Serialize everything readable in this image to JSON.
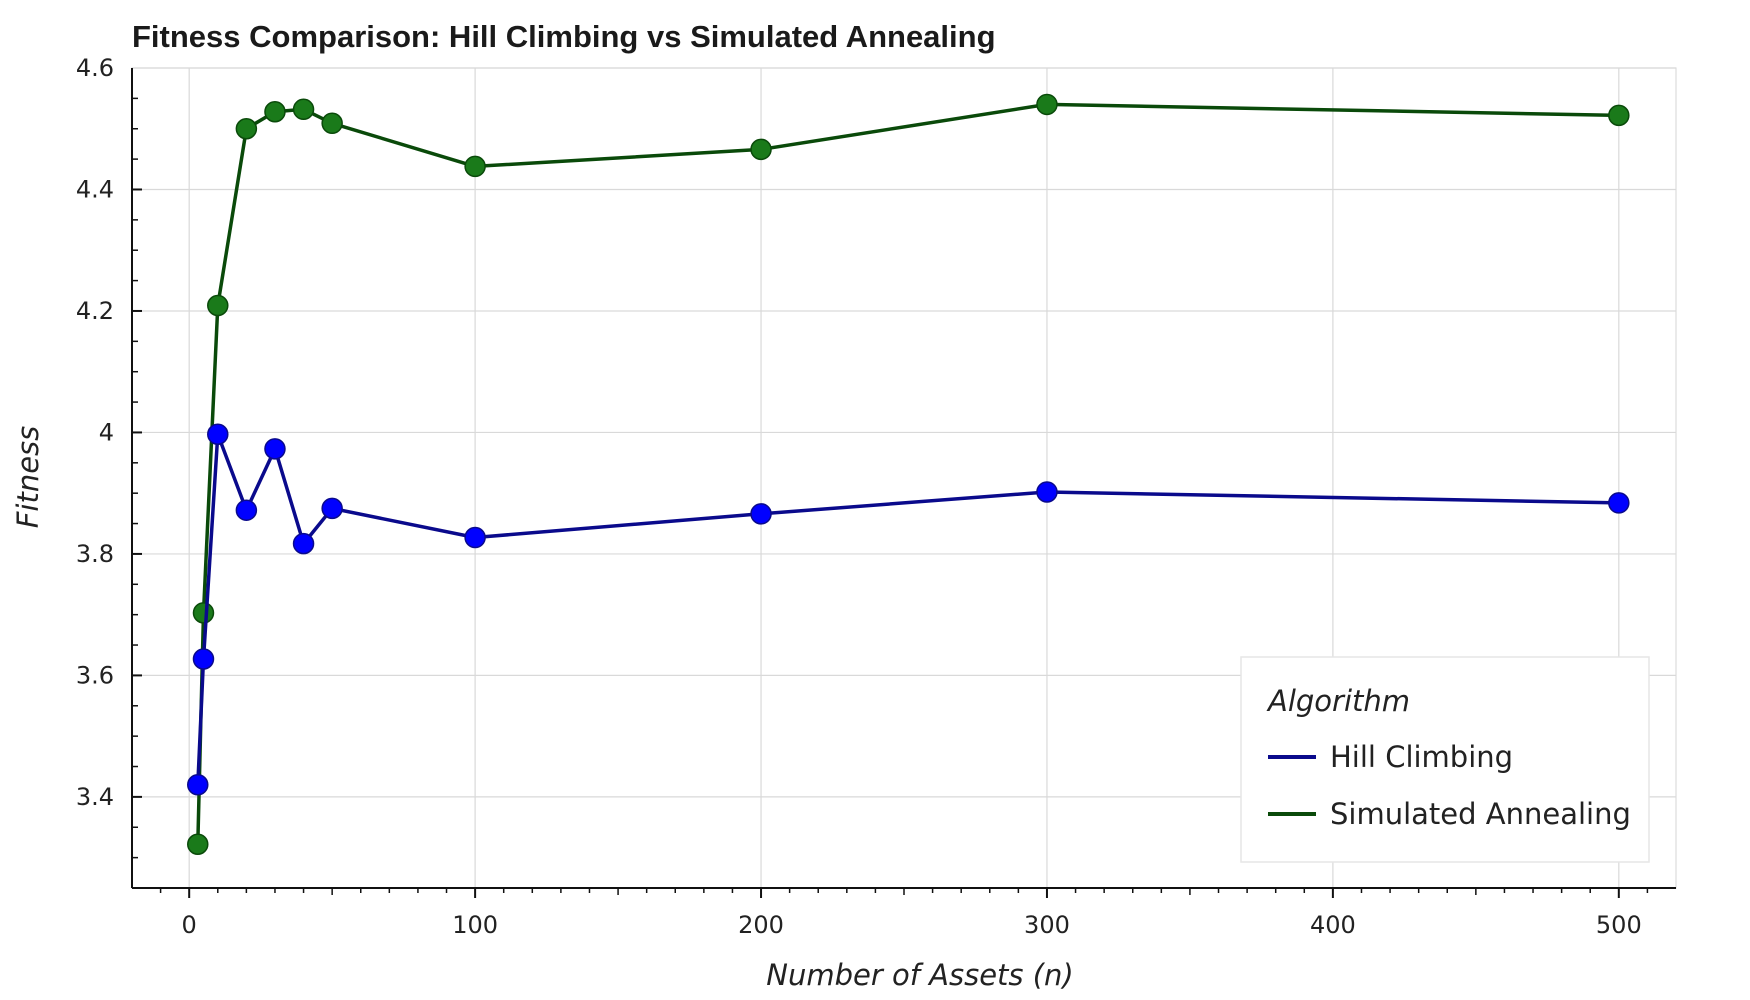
{
  "chart_data": {
    "type": "line",
    "title": "Fitness Comparison: Hill Climbing vs Simulated Annealing",
    "xlabel": "Number of Assets (n)",
    "ylabel": "Fitness",
    "xlim": [
      -20,
      520
    ],
    "ylim": [
      3.25,
      4.6
    ],
    "xticks": [
      0,
      100,
      200,
      300,
      400,
      500
    ],
    "xtick_labels": [
      "0",
      "100",
      "200",
      "300",
      "400",
      "500"
    ],
    "yticks": [
      3.4,
      3.6,
      3.8,
      4.0,
      4.2,
      4.4,
      4.6
    ],
    "ytick_labels": [
      "3.4",
      "3.6",
      "3.8",
      "4",
      "4.2",
      "4.4",
      "4.6"
    ],
    "grid": true,
    "legend": {
      "title": "Algorithm",
      "position": "bottom-right"
    },
    "x": [
      3,
      5,
      10,
      20,
      30,
      40,
      50,
      100,
      200,
      300,
      500
    ],
    "series": [
      {
        "name": "Hill Climbing",
        "color": "#0a0a8c",
        "marker_color": "#0000ff",
        "values": [
          3.42,
          3.627,
          3.997,
          3.872,
          3.973,
          3.817,
          3.875,
          3.827,
          3.866,
          3.902,
          3.884
        ]
      },
      {
        "name": "Simulated Annealing",
        "color": "#0a4a0a",
        "marker_color": "#1a7a1a",
        "values": [
          3.322,
          3.703,
          4.209,
          4.5,
          4.528,
          4.532,
          4.509,
          4.438,
          4.466,
          4.54,
          4.522
        ]
      }
    ]
  }
}
